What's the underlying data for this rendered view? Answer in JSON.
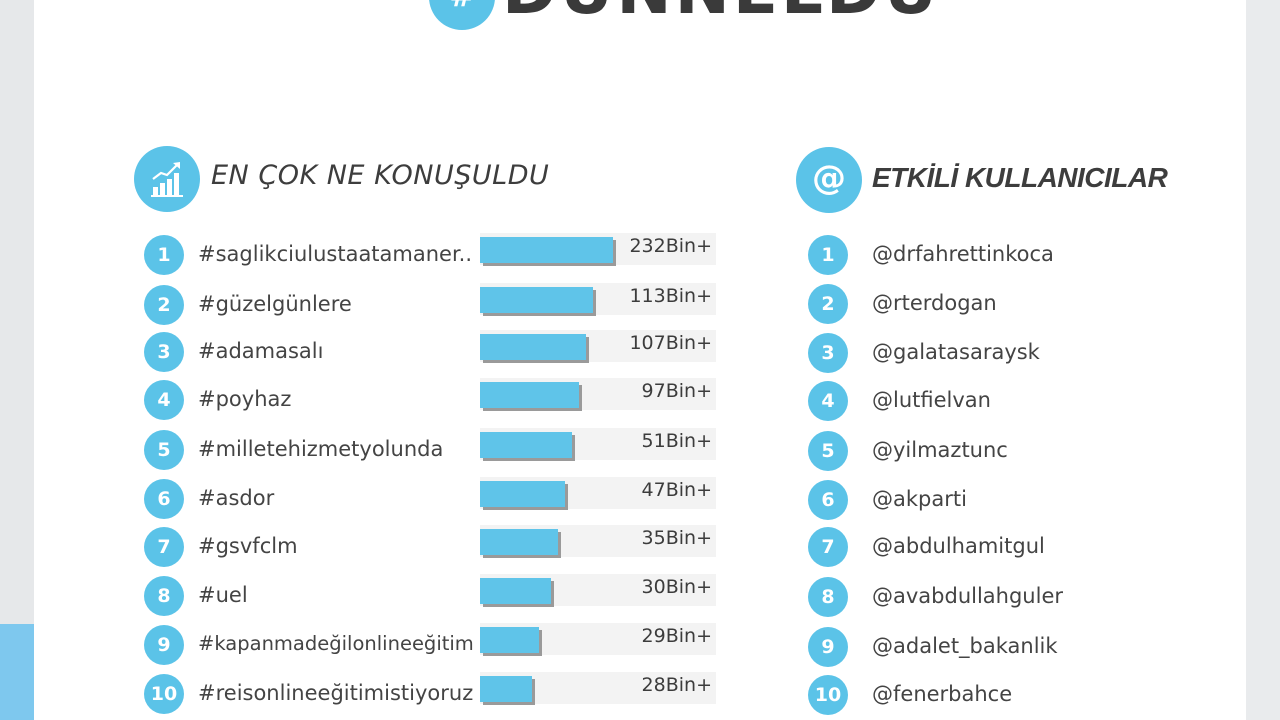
{
  "header": {
    "badge": "#",
    "title": "DÜNNELDU"
  },
  "topics": {
    "title": "EN ÇOK NE KONUŞULDU",
    "icon": "chart-growth-icon",
    "items": [
      {
        "rank": "1",
        "tag": "#saglikciulustaatamaner..",
        "value": "232Bin+",
        "level": 0.95
      },
      {
        "rank": "2",
        "tag": "#güzelgünlere",
        "value": "113Bin+",
        "level": 0.81
      },
      {
        "rank": "3",
        "tag": "#adamasalı",
        "value": "107Bin+",
        "level": 0.76
      },
      {
        "rank": "4",
        "tag": "#poyhaz",
        "value": "97Bin+",
        "level": 0.71
      },
      {
        "rank": "5",
        "tag": "#milletehizmetyolunda",
        "value": "51Bin+",
        "level": 0.66
      },
      {
        "rank": "6",
        "tag": "#asdor",
        "value": "47Bin+",
        "level": 0.61
      },
      {
        "rank": "7",
        "tag": "#gsvfclm",
        "value": "35Bin+",
        "level": 0.56
      },
      {
        "rank": "8",
        "tag": "#uel",
        "value": "30Bin+",
        "level": 0.51
      },
      {
        "rank": "9",
        "tag": "#kapanmadeğilonlineeğitim",
        "value": "29Bin+",
        "level": 0.42
      },
      {
        "rank": "10",
        "tag": "#reisonlineeğitimistiyoruz",
        "value": "28Bin+",
        "level": 0.37
      }
    ]
  },
  "users": {
    "title": "ETKİLİ KULLANICILAR",
    "icon": "at-sign-icon",
    "icon_glyph": "@",
    "items": [
      {
        "rank": "1",
        "handle": "@drfahrettinkoca"
      },
      {
        "rank": "2",
        "handle": "@rterdogan"
      },
      {
        "rank": "3",
        "handle": "@galatasaraysk"
      },
      {
        "rank": "4",
        "handle": "@lutfielvan"
      },
      {
        "rank": "5",
        "handle": "@yilmaztunc"
      },
      {
        "rank": "6",
        "handle": "@akparti"
      },
      {
        "rank": "7",
        "handle": "@abdulhamitgul"
      },
      {
        "rank": "8",
        "handle": "@avabdullahguler"
      },
      {
        "rank": "9",
        "handle": "@adalet_bakanlik"
      },
      {
        "rank": "10",
        "handle": "@fenerbahce"
      }
    ]
  },
  "colors": {
    "accent": "#5bc3e8",
    "bar": "#5fc4e9",
    "text": "#3d3d3d",
    "track": "#f3f3f3"
  }
}
